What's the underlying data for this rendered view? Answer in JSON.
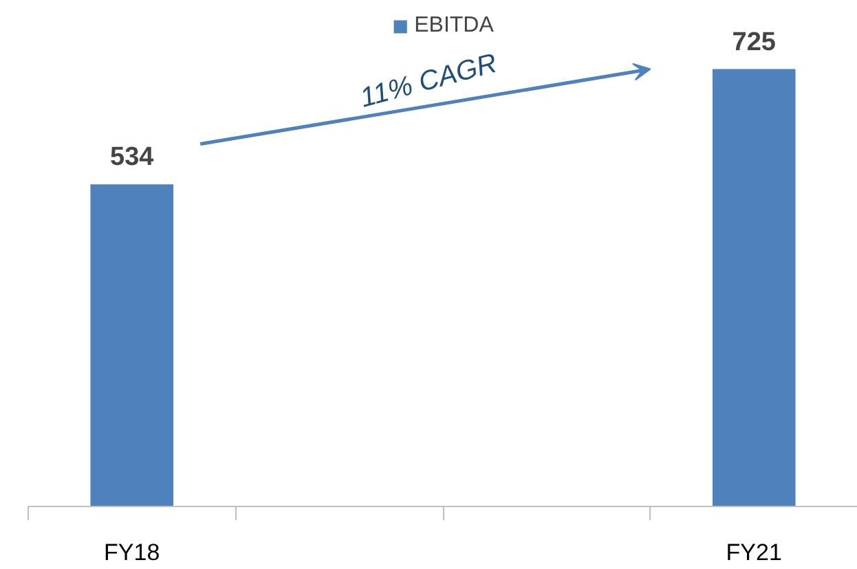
{
  "chart_data": {
    "type": "bar",
    "categories": [
      "FY18",
      null,
      null,
      "FY21"
    ],
    "series": [
      {
        "name": "EBITDA",
        "color": "#4f81bd",
        "values": [
          534,
          null,
          null,
          725
        ]
      }
    ],
    "data_labels": true,
    "legend": "top",
    "grid": false,
    "tick_labels": "x",
    "annotations": [
      "11% CAGR"
    ]
  }
}
